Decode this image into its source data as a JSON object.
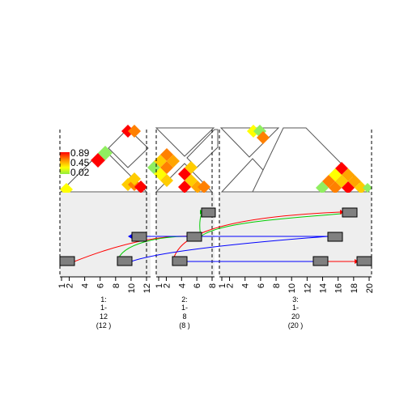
{
  "legend": {
    "labels": [
      "0.89",
      "0.45",
      "0.02"
    ],
    "gradient_colors": [
      "#ff0000",
      "#ff8c00",
      "#ffff00",
      "#90ee40"
    ]
  },
  "palette": {
    "red": "#ff0000",
    "orange": "#ff8000",
    "orange_light": "#ffa500",
    "yellow": "#ffcc00",
    "yellow_bright": "#ffff00",
    "green": "#90ee60",
    "block_gray": "#808080",
    "panel_bg": "#eeeeee",
    "link_red": "#ff0000",
    "link_green": "#00cc00",
    "link_blue": "#0000ff"
  },
  "panels": [
    {
      "id": "1",
      "ticks": [
        "1",
        "2",
        "4",
        "6",
        "8",
        "10",
        "12"
      ],
      "label_lines": [
        "1:",
        "1-",
        "12",
        "(12 )"
      ]
    },
    {
      "id": "2",
      "ticks": [
        "1",
        "2",
        "4",
        "6",
        "8"
      ],
      "label_lines": [
        "2:",
        "1-",
        "8",
        "(8 )"
      ]
    },
    {
      "id": "3",
      "ticks": [
        "1",
        "2",
        "4",
        "6",
        "8",
        "10",
        "12",
        "14",
        "16",
        "18",
        "20"
      ],
      "label_lines": [
        "3:",
        "1-",
        "20",
        "(20 )"
      ]
    }
  ]
}
